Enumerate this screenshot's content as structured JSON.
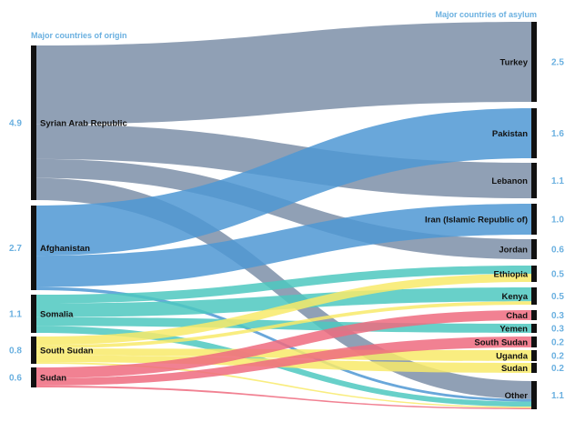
{
  "chart_data": {
    "type": "sankey",
    "left_header": "Major countries of origin",
    "right_header": "Major countries of asylum",
    "origins": [
      {
        "name": "Syrian Arab Republic",
        "value": "4.9"
      },
      {
        "name": "Afghanistan",
        "value": "2.7"
      },
      {
        "name": "Somalia",
        "value": "1.1"
      },
      {
        "name": "South Sudan",
        "value": "0.8"
      },
      {
        "name": "Sudan",
        "value": "0.6"
      }
    ],
    "destinations": [
      {
        "name": "Turkey",
        "value": "2.5"
      },
      {
        "name": "Pakistan",
        "value": "1.6"
      },
      {
        "name": "Lebanon",
        "value": "1.1"
      },
      {
        "name": "Iran (Islamic Republic of)",
        "value": "1.0"
      },
      {
        "name": "Jordan",
        "value": "0.6"
      },
      {
        "name": "Ethiopia",
        "value": "0.5"
      },
      {
        "name": "Kenya",
        "value": "0.5"
      },
      {
        "name": "Chad",
        "value": "0.3"
      },
      {
        "name": "Yemen",
        "value": "0.3"
      },
      {
        "name": "South Sudan",
        "value": "0.2"
      },
      {
        "name": "Uganda",
        "value": "0.2"
      },
      {
        "name": "Sudan",
        "value": "0.2"
      },
      {
        "name": "Other",
        "value": "1.1"
      }
    ],
    "flows": [
      {
        "source": "Syrian Arab Republic",
        "target": "Turkey",
        "value": 2.5
      },
      {
        "source": "Syrian Arab Republic",
        "target": "Lebanon",
        "value": 1.1
      },
      {
        "source": "Syrian Arab Republic",
        "target": "Jordan",
        "value": 0.6
      },
      {
        "source": "Syrian Arab Republic",
        "target": "Other",
        "value": 0.7
      },
      {
        "source": "Afghanistan",
        "target": "Pakistan",
        "value": 1.6
      },
      {
        "source": "Afghanistan",
        "target": "Iran (Islamic Republic of)",
        "value": 1.0
      },
      {
        "source": "Afghanistan",
        "target": "Other",
        "value": 0.1
      },
      {
        "source": "Somalia",
        "target": "Ethiopia",
        "value": 0.25
      },
      {
        "source": "Somalia",
        "target": "Kenya",
        "value": 0.4
      },
      {
        "source": "Somalia",
        "target": "Yemen",
        "value": 0.25
      },
      {
        "source": "Somalia",
        "target": "Other",
        "value": 0.2
      },
      {
        "source": "South Sudan",
        "target": "Ethiopia",
        "value": 0.25
      },
      {
        "source": "South Sudan",
        "target": "Kenya",
        "value": 0.1
      },
      {
        "source": "South Sudan",
        "target": "Sudan",
        "value": 0.2
      },
      {
        "source": "South Sudan",
        "target": "Uganda",
        "value": 0.2
      },
      {
        "source": "South Sudan",
        "target": "Other",
        "value": 0.05
      },
      {
        "source": "Sudan",
        "target": "Chad",
        "value": 0.3
      },
      {
        "source": "Sudan",
        "target": "South Sudan",
        "value": 0.2
      },
      {
        "source": "Sudan",
        "target": "Other",
        "value": 0.05
      }
    ],
    "colors": {
      "Syrian Arab Republic": "#7d8fa8",
      "Afghanistan": "#4f98d4",
      "Somalia": "#4ec8c0",
      "South Sudan": "#f8ea6a",
      "Sudan": "#ee6b7f",
      "node": "#111111",
      "header": "#6ab0e0",
      "number": "#6ab0e0"
    }
  }
}
